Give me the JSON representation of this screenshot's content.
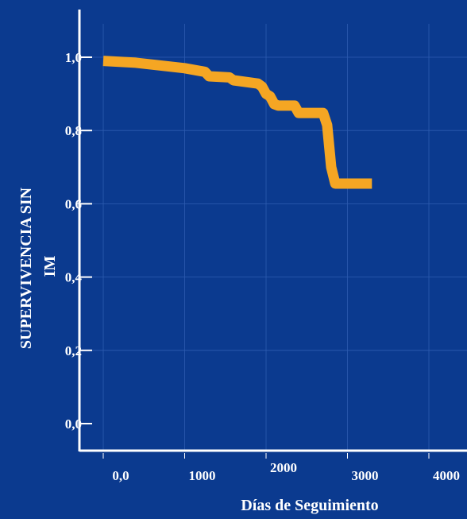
{
  "chart_data": {
    "type": "line",
    "title": "",
    "xlabel": "Días de Seguimiento",
    "ylabel": [
      "SUPERVIVENCIA SIN",
      "IM"
    ],
    "xlim": [
      0,
      4000
    ],
    "ylim": [
      0,
      1.0
    ],
    "x_ticks": [
      0,
      1000,
      2000,
      3000,
      4000
    ],
    "x_tick_labels": [
      "0,0",
      "1000",
      "2000",
      "3000",
      "4000"
    ],
    "y_ticks": [
      0,
      0.2,
      0.4,
      0.6,
      0.8,
      1.0
    ],
    "y_tick_labels": [
      "0,0",
      "0,2",
      "0,4",
      "0,6",
      "0,8",
      "1,0"
    ],
    "grid": true,
    "series": [
      {
        "color": "#f5a623",
        "x": [
          0,
          400,
          1000,
          1250,
          1300,
          1550,
          1600,
          1900,
          1950,
          2000,
          2050,
          2100,
          2150,
          2350,
          2400,
          2700,
          2750,
          2800,
          2850,
          3300
        ],
        "y": [
          0.99,
          0.985,
          0.97,
          0.96,
          0.948,
          0.945,
          0.937,
          0.928,
          0.92,
          0.9,
          0.893,
          0.872,
          0.868,
          0.868,
          0.848,
          0.848,
          0.815,
          0.7,
          0.655,
          0.655
        ]
      }
    ]
  },
  "colors": {
    "background": "#0b3a8f",
    "axis": "#ffffff",
    "grid": "#2e5cb0",
    "series": "#f5a623"
  }
}
